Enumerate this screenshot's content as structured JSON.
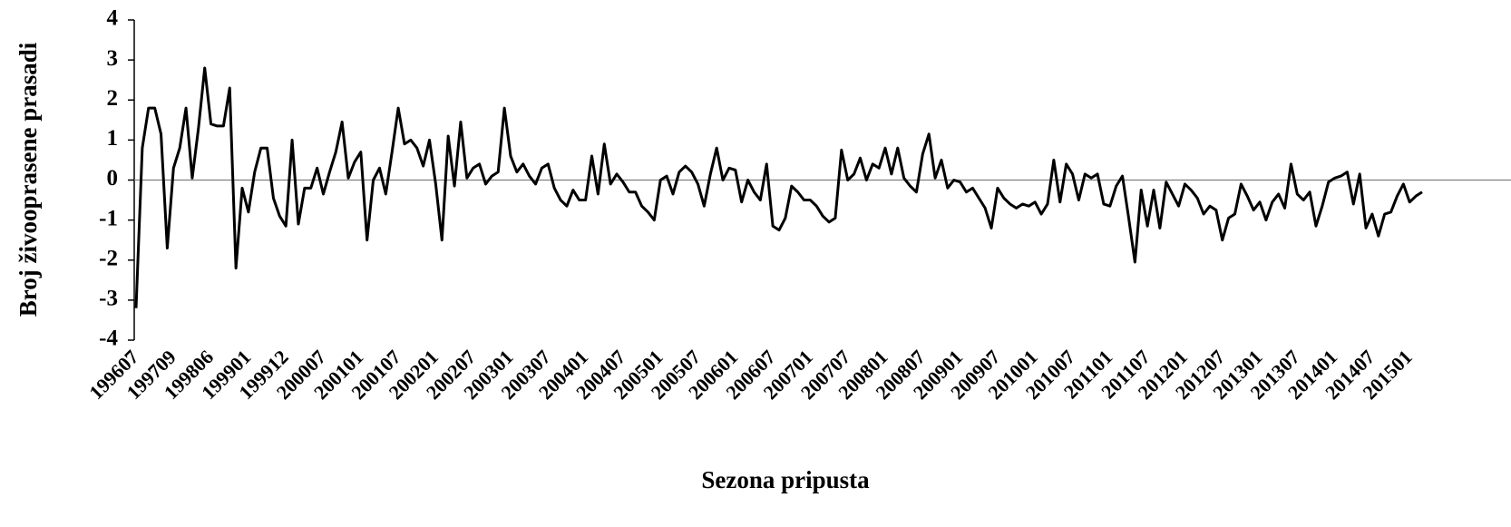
{
  "chart_data": {
    "type": "line",
    "x_label": "Sezona pripusta",
    "y_label": "Broj živooprasene prasadi",
    "categories": [
      "199607",
      null,
      null,
      null,
      null,
      null,
      "199709",
      null,
      null,
      null,
      null,
      null,
      "199806",
      null,
      null,
      null,
      null,
      null,
      "199901",
      null,
      null,
      null,
      null,
      null,
      "199912",
      null,
      null,
      null,
      null,
      null,
      "200007",
      null,
      null,
      null,
      null,
      null,
      "200101",
      null,
      null,
      null,
      null,
      null,
      "200107",
      null,
      null,
      null,
      null,
      null,
      "200201",
      null,
      null,
      null,
      null,
      null,
      "200207",
      null,
      null,
      null,
      null,
      null,
      "200301",
      null,
      null,
      null,
      null,
      null,
      "200307",
      null,
      null,
      null,
      null,
      null,
      "200401",
      null,
      null,
      null,
      null,
      null,
      "200407",
      null,
      null,
      null,
      null,
      null,
      "200501",
      null,
      null,
      null,
      null,
      null,
      "200507",
      null,
      null,
      null,
      null,
      null,
      "200601",
      null,
      null,
      null,
      null,
      null,
      "200607",
      null,
      null,
      null,
      null,
      null,
      "200701",
      null,
      null,
      null,
      null,
      null,
      "200707",
      null,
      null,
      null,
      null,
      null,
      "200801",
      null,
      null,
      null,
      null,
      null,
      "200807",
      null,
      null,
      null,
      null,
      null,
      "200901",
      null,
      null,
      null,
      null,
      null,
      "200907",
      null,
      null,
      null,
      null,
      null,
      "201001",
      null,
      null,
      null,
      null,
      null,
      "201007",
      null,
      null,
      null,
      null,
      null,
      "201101",
      null,
      null,
      null,
      null,
      null,
      "201107",
      null,
      null,
      null,
      null,
      null,
      "201201",
      null,
      null,
      null,
      null,
      null,
      "201207",
      null,
      null,
      null,
      null,
      null,
      "201301",
      null,
      null,
      null,
      null,
      null,
      "201307",
      null,
      null,
      null,
      null,
      null,
      "201401",
      null,
      null,
      null,
      null,
      null,
      "201407",
      null,
      null,
      null,
      null,
      null,
      "201501",
      null,
      null
    ],
    "values": [
      -3.2,
      0.8,
      1.8,
      1.8,
      1.15,
      -1.7,
      0.3,
      0.8,
      1.8,
      0.05,
      1.3,
      2.8,
      1.4,
      1.35,
      1.35,
      2.3,
      -2.2,
      -0.2,
      -0.8,
      0.2,
      0.8,
      0.8,
      -0.45,
      -0.9,
      -1.15,
      1.0,
      -1.1,
      -0.2,
      -0.2,
      0.3,
      -0.35,
      0.2,
      0.7,
      1.45,
      0.05,
      0.45,
      0.7,
      -1.5,
      0.0,
      0.3,
      -0.35,
      0.7,
      1.8,
      0.9,
      1.0,
      0.8,
      0.35,
      1.0,
      -0.1,
      -1.5,
      1.1,
      -0.15,
      1.45,
      0.05,
      0.3,
      0.4,
      -0.1,
      0.1,
      0.2,
      1.8,
      0.6,
      0.2,
      0.4,
      0.1,
      -0.1,
      0.3,
      0.4,
      -0.2,
      -0.5,
      -0.65,
      -0.25,
      -0.5,
      -0.5,
      0.6,
      -0.35,
      0.9,
      -0.1,
      0.15,
      -0.05,
      -0.3,
      -0.3,
      -0.65,
      -0.8,
      -1.0,
      0.0,
      0.1,
      -0.35,
      0.2,
      0.35,
      0.2,
      -0.1,
      -0.65,
      0.15,
      0.8,
      0.0,
      0.3,
      0.25,
      -0.55,
      0.0,
      -0.3,
      -0.5,
      0.4,
      -1.15,
      -1.25,
      -0.95,
      -0.15,
      -0.3,
      -0.5,
      -0.5,
      -0.65,
      -0.9,
      -1.05,
      -0.95,
      0.75,
      0.0,
      0.15,
      0.55,
      0.0,
      0.4,
      0.3,
      0.8,
      0.15,
      0.8,
      0.05,
      -0.15,
      -0.3,
      0.65,
      1.15,
      0.05,
      0.5,
      -0.2,
      0.0,
      -0.05,
      -0.3,
      -0.2,
      -0.45,
      -0.7,
      -1.2,
      -0.2,
      -0.45,
      -0.6,
      -0.7,
      -0.6,
      -0.65,
      -0.55,
      -0.85,
      -0.6,
      0.5,
      -0.55,
      0.4,
      0.15,
      -0.5,
      0.15,
      0.05,
      0.15,
      -0.6,
      -0.65,
      -0.15,
      0.1,
      -0.95,
      -2.05,
      -0.25,
      -1.15,
      -0.25,
      -1.2,
      -0.05,
      -0.35,
      -0.65,
      -0.1,
      -0.25,
      -0.45,
      -0.85,
      -0.65,
      -0.75,
      -1.5,
      -0.95,
      -0.85,
      -0.1,
      -0.4,
      -0.75,
      -0.55,
      -1.0,
      -0.55,
      -0.35,
      -0.7,
      0.4,
      -0.35,
      -0.5,
      -0.3,
      -1.15,
      -0.65,
      -0.05,
      0.05,
      0.1,
      0.2,
      -0.6,
      0.15,
      -1.2,
      -0.85,
      -1.4,
      -0.85,
      -0.8,
      -0.4,
      -0.1,
      -0.55,
      -0.4,
      -0.3
    ],
    "color": "#000000",
    "ylim": [
      -4,
      4
    ],
    "yticks": [
      4,
      3,
      2,
      1,
      0,
      -1,
      -2,
      -3,
      -4
    ]
  }
}
